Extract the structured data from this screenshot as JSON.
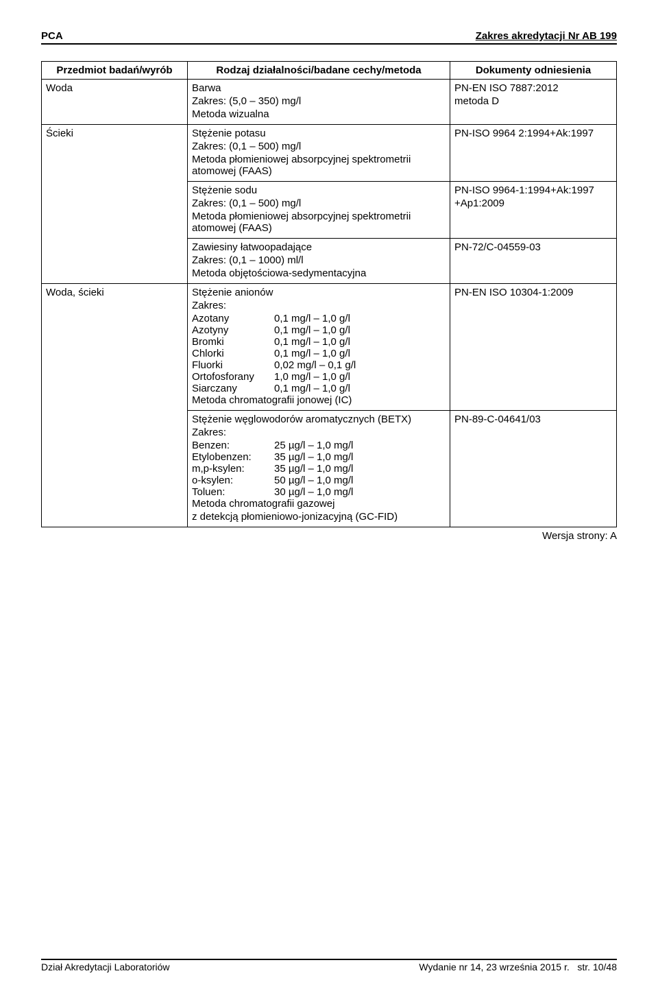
{
  "header": {
    "left": "PCA",
    "right": "Zakres akredytacji Nr AB 199"
  },
  "table": {
    "headers": {
      "subject": "Przedmiot badań/wyrób",
      "method": "Rodzaj działalności/badane cechy/metoda",
      "docs": "Dokumenty odniesienia"
    },
    "rows": [
      {
        "subject": "Woda",
        "method_lines": [
          "Barwa",
          "Zakres: (5,0 – 350) mg/l",
          "Metoda wizualna"
        ],
        "doc_lines": [
          "PN-EN ISO 7887:2012",
          "metoda D"
        ]
      },
      {
        "subject": "Ścieki",
        "subject_rowspan": 3,
        "method_lines": [
          "Stężenie potasu",
          "Zakres: (0,1 – 500) mg/l",
          "Metoda płomieniowej absorpcyjnej spektrometrii atomowej (FAAS)"
        ],
        "doc_lines": [
          "PN-ISO 9964 2:1994+Ak:1997"
        ]
      },
      {
        "method_lines": [
          "Stężenie sodu",
          "Zakres: (0,1 – 500) mg/l",
          "Metoda płomieniowej absorpcyjnej spektrometrii atomowej (FAAS)"
        ],
        "doc_lines": [
          "PN-ISO 9964-1:1994+Ak:1997",
          "+Ap1:2009"
        ]
      },
      {
        "method_lines": [
          "Zawiesiny łatwoopadające",
          "Zakres: (0,1 – 1000) ml/l",
          "Metoda objętościowa-sedymentacyjna"
        ],
        "doc_lines": [
          "PN-72/C-04559-03"
        ]
      },
      {
        "subject": "Woda, ścieki",
        "subject_rowspan": 2,
        "method_intro": [
          "Stężenie anionów",
          "Zakres:"
        ],
        "method_pairs": [
          {
            "k": "Azotany",
            "v": "0,1 mg/l – 1,0 g/l"
          },
          {
            "k": "Azotyny",
            "v": "0,1 mg/l – 1,0 g/l"
          },
          {
            "k": "Bromki",
            "v": "0,1 mg/l – 1,0 g/l"
          },
          {
            "k": "Chlorki",
            "v": "0,1 mg/l – 1,0 g/l"
          },
          {
            "k": "Fluorki",
            "v": "0,02 mg/l – 0,1 g/l"
          },
          {
            "k": "Ortofosforany",
            "v": "1,0 mg/l – 1,0 g/l"
          },
          {
            "k": "Siarczany",
            "v": "0,1 mg/l – 1,0 g/l"
          }
        ],
        "method_outro": [
          "Metoda chromatografii jonowej (IC)"
        ],
        "doc_lines": [
          "PN-EN ISO 10304-1:2009"
        ]
      },
      {
        "method_intro": [
          "Stężenie węglowodorów aromatycznych (BETX)",
          "Zakres:"
        ],
        "method_pairs": [
          {
            "k": "Benzen:",
            "v": "25 µg/l – 1,0 mg/l"
          },
          {
            "k": "Etylobenzen:",
            "v": "35 µg/l – 1,0 mg/l"
          },
          {
            "k": "m,p-ksylen:",
            "v": "35 µg/l – 1,0 mg/l"
          },
          {
            "k": "o-ksylen:",
            "v": "50 µg/l – 1,0 mg/l"
          },
          {
            "k": "Toluen:",
            "v": "30 µg/l – 1,0 mg/l"
          }
        ],
        "method_outro": [
          "Metoda chromatografii gazowej",
          "z detekcją płomieniowo-jonizacyjną (GC-FID)"
        ],
        "doc_lines": [
          "PN-89-C-04641/03"
        ]
      }
    ]
  },
  "version_note": "Wersja strony: A",
  "footer": {
    "left": "Dział Akredytacji Laboratoriów",
    "center": "Wydanie nr 14, 23 września 2015 r.",
    "right": "str. 10/48"
  }
}
